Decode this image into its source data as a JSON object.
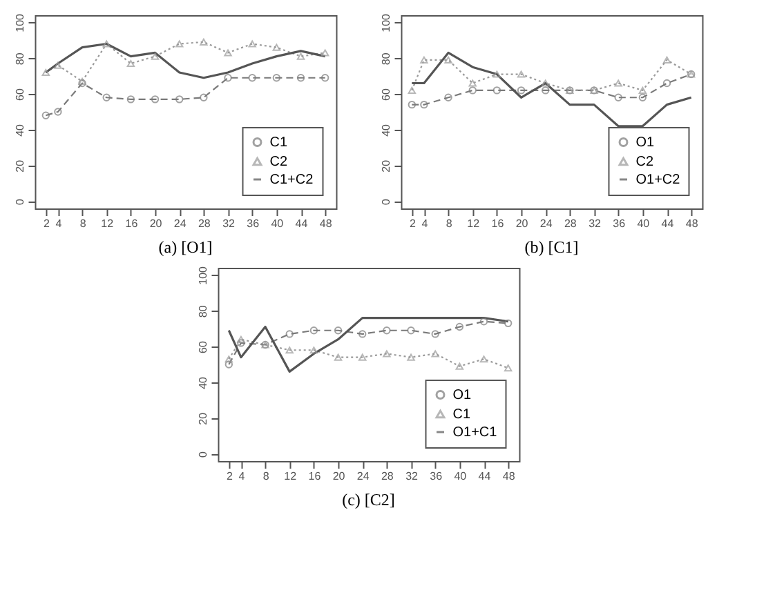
{
  "chart_data": [
    {
      "type": "line",
      "title": "(a) [O1]",
      "x": [
        2,
        4,
        8,
        12,
        16,
        20,
        24,
        28,
        32,
        36,
        40,
        44,
        48
      ],
      "xlim": [
        0.2,
        49.8
      ],
      "xticks": [
        2,
        4,
        8,
        12,
        16,
        20,
        24,
        28,
        32,
        36,
        40,
        44,
        48
      ],
      "ylim": [
        -4,
        104
      ],
      "yticks": [
        0,
        20,
        40,
        60,
        80,
        100
      ],
      "legend": "bottom right",
      "grid": false,
      "series": [
        {
          "name": "C1",
          "color": "#7a7a7a",
          "marker": "circle",
          "line_style": "dashed",
          "values": [
            48,
            50,
            66,
            58,
            57,
            57,
            57,
            58,
            69,
            69,
            69,
            69,
            69
          ]
        },
        {
          "name": "C2",
          "color": "#9a9a9a",
          "marker": "triangle",
          "line_style": "dotted",
          "values": [
            72,
            76,
            67,
            88,
            77,
            81,
            88,
            89,
            83,
            88,
            86,
            81,
            83
          ]
        },
        {
          "name": "C1+C2",
          "color": "#555555",
          "marker": "none",
          "line_style": "solid",
          "values": [
            72,
            77,
            86,
            88,
            81,
            83,
            72,
            69,
            72,
            77,
            81,
            84,
            81
          ]
        }
      ]
    },
    {
      "type": "line",
      "title": "(b) [C1]",
      "x": [
        2,
        4,
        8,
        12,
        16,
        20,
        24,
        28,
        32,
        36,
        40,
        44,
        48
      ],
      "xlim": [
        0.2,
        49.8
      ],
      "xticks": [
        2,
        4,
        8,
        12,
        16,
        20,
        24,
        28,
        32,
        36,
        40,
        44,
        48
      ],
      "ylim": [
        -4,
        104
      ],
      "yticks": [
        0,
        20,
        40,
        60,
        80,
        100
      ],
      "legend": "bottom right",
      "grid": false,
      "series": [
        {
          "name": "O1",
          "color": "#7a7a7a",
          "marker": "circle",
          "line_style": "dashed",
          "values": [
            54,
            54,
            58,
            62,
            62,
            62,
            62,
            62,
            62,
            58,
            58,
            66,
            71
          ]
        },
        {
          "name": "C2",
          "color": "#9a9a9a",
          "marker": "triangle",
          "line_style": "dotted",
          "values": [
            62,
            79,
            79,
            66,
            71,
            71,
            66,
            62,
            62,
            66,
            62,
            79,
            71
          ]
        },
        {
          "name": "O1+C2",
          "color": "#555555",
          "marker": "none",
          "line_style": "solid",
          "values": [
            66,
            66,
            83,
            75,
            71,
            58,
            66,
            54,
            54,
            42,
            42,
            54,
            58
          ]
        }
      ]
    },
    {
      "type": "line",
      "title": "(c) [C2]",
      "x": [
        2,
        4,
        8,
        12,
        16,
        20,
        24,
        28,
        32,
        36,
        40,
        44,
        48
      ],
      "xlim": [
        0.2,
        49.8
      ],
      "xticks": [
        2,
        4,
        8,
        12,
        16,
        20,
        24,
        28,
        32,
        36,
        40,
        44,
        48
      ],
      "ylim": [
        -4,
        104
      ],
      "yticks": [
        0,
        20,
        40,
        60,
        80,
        100
      ],
      "legend": "bottom right",
      "grid": false,
      "series": [
        {
          "name": "O1",
          "color": "#7a7a7a",
          "marker": "circle",
          "line_style": "dashed",
          "values": [
            50,
            62,
            61,
            67,
            69,
            69,
            67,
            69,
            69,
            67,
            71,
            74,
            73
          ]
        },
        {
          "name": "C1",
          "color": "#9a9a9a",
          "marker": "triangle",
          "line_style": "dotted",
          "values": [
            53,
            64,
            61,
            58,
            58,
            54,
            54,
            56,
            54,
            56,
            49,
            53,
            48
          ]
        },
        {
          "name": "O1+C1",
          "color": "#555555",
          "marker": "none",
          "line_style": "solid",
          "values": [
            69,
            54,
            71,
            46,
            56,
            64,
            76,
            76,
            76,
            76,
            76,
            76,
            74
          ]
        }
      ]
    }
  ]
}
